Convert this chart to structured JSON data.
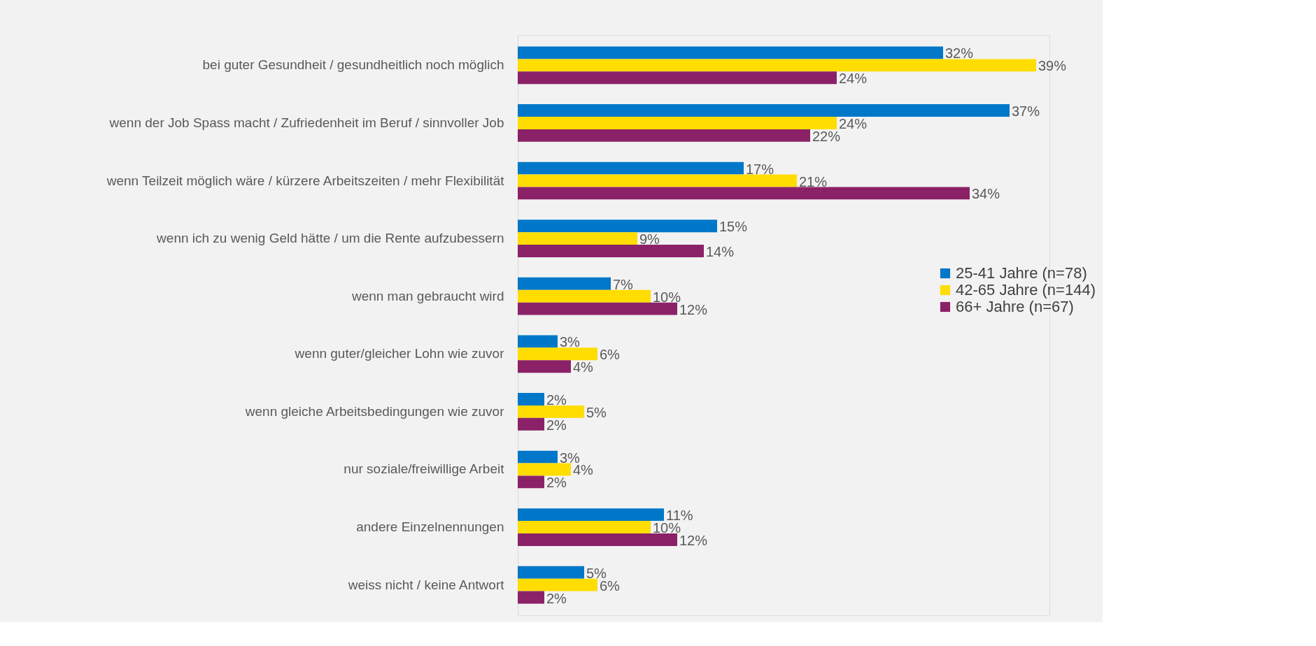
{
  "chart_data": {
    "type": "bar",
    "orientation": "horizontal",
    "legend": "right",
    "grid": false,
    "categories": [
      "bei guter Gesundheit / gesundheitlich noch möglich",
      "wenn der Job Spass macht / Zufriedenheit im Beruf / sinnvoller Job",
      "wenn Teilzeit möglich wäre / kürzere Arbeitszeiten / mehr Flexibilität",
      "wenn ich zu wenig Geld hätte / um die Rente aufzubessern",
      "wenn man gebraucht wird",
      "wenn guter/gleicher Lohn wie zuvor",
      "wenn gleiche Arbeitsbedingungen wie zuvor",
      "nur soziale/freiwillige Arbeit",
      "andere Einzelnennungen",
      "weiss nicht / keine Antwort"
    ],
    "series": [
      {
        "name": "25-41 Jahre (n=78)",
        "color": "#0077c8",
        "values": [
          32,
          37,
          17,
          15,
          7,
          3,
          2,
          3,
          11,
          5
        ],
        "value_labels": [
          "32%",
          "37%",
          "17%",
          "15%",
          "7%",
          "3%",
          "2%",
          "3%",
          "11%",
          "5%"
        ]
      },
      {
        "name": "42-65 Jahre (n=144)",
        "color": "#ffdd00",
        "values": [
          39,
          24,
          21,
          9,
          10,
          6,
          5,
          4,
          10,
          6
        ],
        "value_labels": [
          "39%",
          "24%",
          "21%",
          "9%",
          "10%",
          "6%",
          "5%",
          "4%",
          "10%",
          "6%"
        ]
      },
      {
        "name": "66+ Jahre (n=67)",
        "color": "#8b2268",
        "values": [
          24,
          22,
          34,
          14,
          12,
          4,
          2,
          2,
          12,
          2
        ],
        "value_labels": [
          "24%",
          "22%",
          "34%",
          "14%",
          "12%",
          "4%",
          "2%",
          "2%",
          "12%",
          "2%"
        ]
      }
    ]
  }
}
